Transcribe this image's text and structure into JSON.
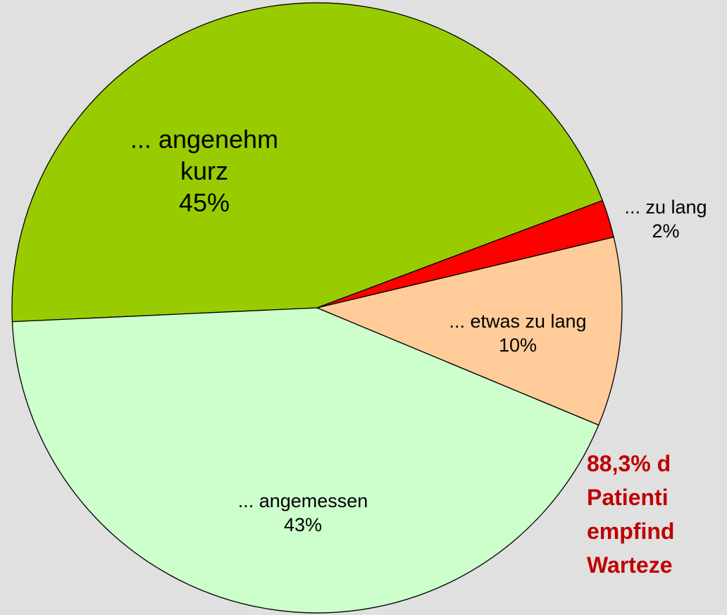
{
  "chart_data": {
    "type": "pie",
    "categories": [
      "... angenehm kurz",
      "... zu lang",
      "... etwas zu lang",
      "... angemessen"
    ],
    "values": [
      45,
      2,
      10,
      43
    ],
    "value_labels": [
      "45%",
      "2%",
      "10%",
      "43%"
    ],
    "colors": [
      "#99cc00",
      "#ff0000",
      "#ffcc99",
      "#ccffcc"
    ],
    "annotation": {
      "lines": [
        "88,3% d",
        "Patienti",
        "empfind",
        "Warteze"
      ],
      "color": "#c00000"
    }
  }
}
